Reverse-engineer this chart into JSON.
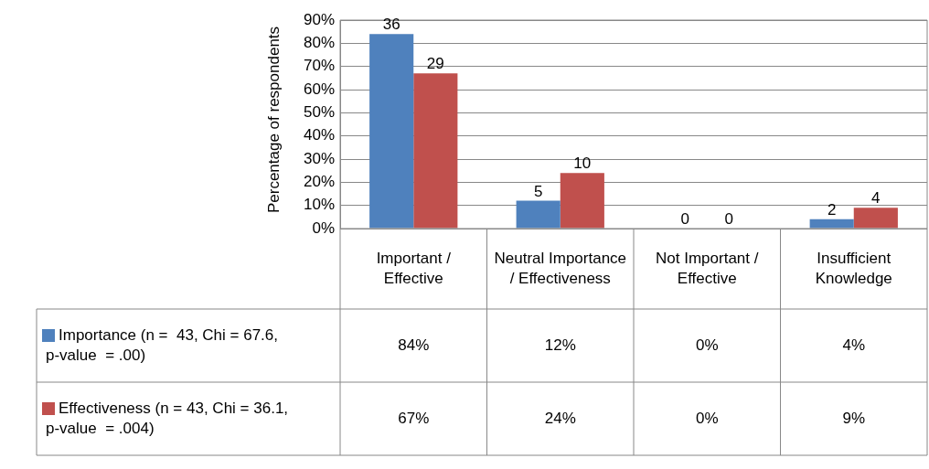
{
  "chart_data": {
    "type": "bar",
    "ylabel": "Percentage of respondents",
    "categories": [
      "Important / Effective",
      "Neutral Importance / Effectiveness",
      "Not Important / Effective",
      "Insufficient Knowledge"
    ],
    "series": [
      {
        "name": "Importance (n =  43, Chi = 67.6, p-value  = .00)",
        "color": "#4f81bd",
        "values": [
          84,
          12,
          0,
          4
        ],
        "value_labels": [
          "84%",
          "12%",
          "0%",
          "4%"
        ]
      },
      {
        "name": "Effectiveness (n = 43, Chi = 36.1, p-value  = .004)",
        "color": "#c0504d",
        "values": [
          67,
          24,
          0,
          9
        ],
        "value_labels": [
          "67%",
          "24%",
          "0%",
          "9%"
        ]
      }
    ],
    "annotations": [
      {
        "text": "36",
        "x": "Important / Effective",
        "y": 84
      },
      {
        "text": "29",
        "x": "Important / Effective",
        "y": 67
      },
      {
        "text": "5",
        "x": "Neutral Importance / Effectiveness",
        "y": 12
      },
      {
        "text": "10",
        "x": "Neutral Importance / Effectiveness",
        "y": 24
      },
      {
        "text": "0",
        "x": "Not Important / Effective",
        "y": 0
      },
      {
        "text": "0",
        "x": "Not Important / Effective",
        "y": 0
      },
      {
        "text": "2",
        "x": "Insufficient Knowledge",
        "y": 4
      },
      {
        "text": "4",
        "x": "Insufficient Knowledge",
        "y": 9
      }
    ],
    "ylim": [
      0,
      90
    ],
    "yticks": [
      {
        "value": 0,
        "label": "0%"
      },
      {
        "value": 10,
        "label": "10%"
      },
      {
        "value": 20,
        "label": "20%"
      },
      {
        "value": 30,
        "label": "30%"
      },
      {
        "value": 40,
        "label": "40%"
      },
      {
        "value": 50,
        "label": "50%"
      },
      {
        "value": 60,
        "label": "60%"
      },
      {
        "value": 70,
        "label": "70%"
      },
      {
        "value": 80,
        "label": "80%"
      },
      {
        "value": 90,
        "label": "90%"
      }
    ],
    "grid": "y",
    "legend": "bottom"
  }
}
